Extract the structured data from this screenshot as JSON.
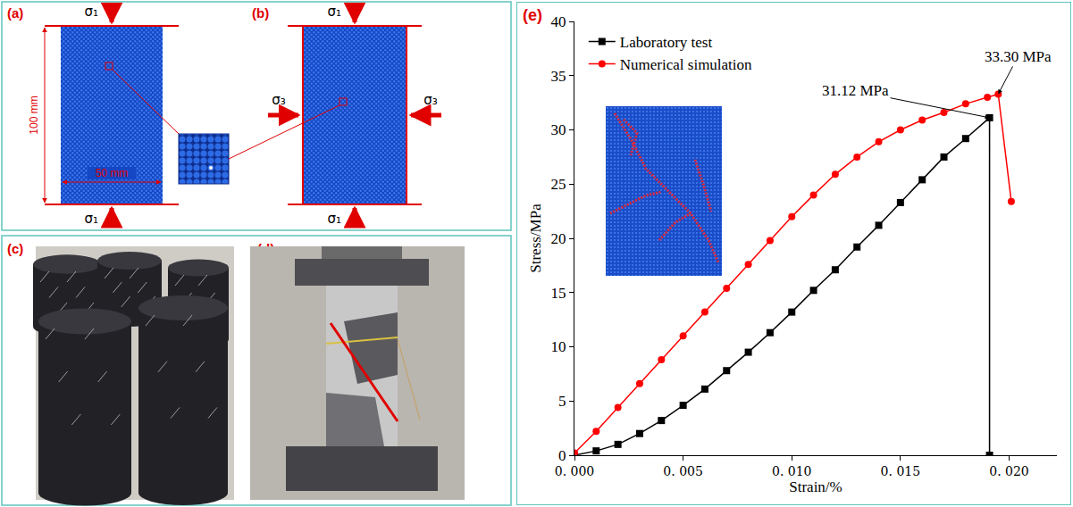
{
  "figure": {
    "a": {
      "label": "(a)",
      "load": "σ₁",
      "height": "100 mm",
      "width": "50 mm"
    },
    "b": {
      "label": "(b)",
      "axial_load": "σ₁",
      "confining_load": "σ₃"
    },
    "c": {
      "label": "(c)"
    },
    "d": {
      "label": "(d)"
    }
  },
  "chart_data": {
    "type": "line",
    "panel_label": "(e)",
    "xlabel": "Strain/%",
    "ylabel": "Stress/MPa",
    "xlim": [
      0,
      0.0222
    ],
    "xticks": [
      {
        "value": 0,
        "label": "0. 000"
      },
      {
        "value": 0.005,
        "label": "0. 005"
      },
      {
        "value": 0.01,
        "label": "0. 010"
      },
      {
        "value": 0.015,
        "label": "0. 015"
      },
      {
        "value": 0.02,
        "label": "0. 020"
      }
    ],
    "ylim": [
      0,
      40
    ],
    "yticks": [
      0,
      5,
      10,
      15,
      20,
      25,
      30,
      35,
      40
    ],
    "legend": "top-left",
    "series": [
      {
        "name": "Laboratory test",
        "color": "#000000",
        "marker": "square",
        "x": [
          0,
          0.001,
          0.002,
          0.003,
          0.004,
          0.005,
          0.006,
          0.007,
          0.008,
          0.009,
          0.01,
          0.011,
          0.012,
          0.013,
          0.014,
          0.015,
          0.016,
          0.017,
          0.018,
          0.0191,
          0.0191
        ],
        "values": [
          0,
          0.4,
          1.0,
          2.0,
          3.2,
          4.6,
          6.1,
          7.8,
          9.5,
          11.3,
          13.2,
          15.2,
          17.1,
          19.2,
          21.2,
          23.3,
          25.4,
          27.5,
          29.2,
          31.12,
          0
        ]
      },
      {
        "name": "Numerical simulation",
        "color": "#ff0000",
        "marker": "circle",
        "x": [
          0,
          0.001,
          0.002,
          0.003,
          0.004,
          0.005,
          0.006,
          0.007,
          0.008,
          0.009,
          0.01,
          0.011,
          0.012,
          0.013,
          0.014,
          0.015,
          0.016,
          0.017,
          0.018,
          0.019,
          0.0195,
          0.0201
        ],
        "values": [
          0.2,
          2.2,
          4.4,
          6.6,
          8.8,
          11.0,
          13.2,
          15.4,
          17.6,
          19.8,
          22.0,
          24.0,
          25.9,
          27.5,
          28.9,
          30.0,
          30.9,
          31.6,
          32.4,
          33.0,
          33.3,
          23.4
        ]
      }
    ],
    "annotations": [
      {
        "text": "33.30 MPa",
        "x": 0.0195,
        "y": 33.3
      },
      {
        "text": "31.12 MPa",
        "x": 0.0191,
        "y": 31.12
      }
    ]
  }
}
